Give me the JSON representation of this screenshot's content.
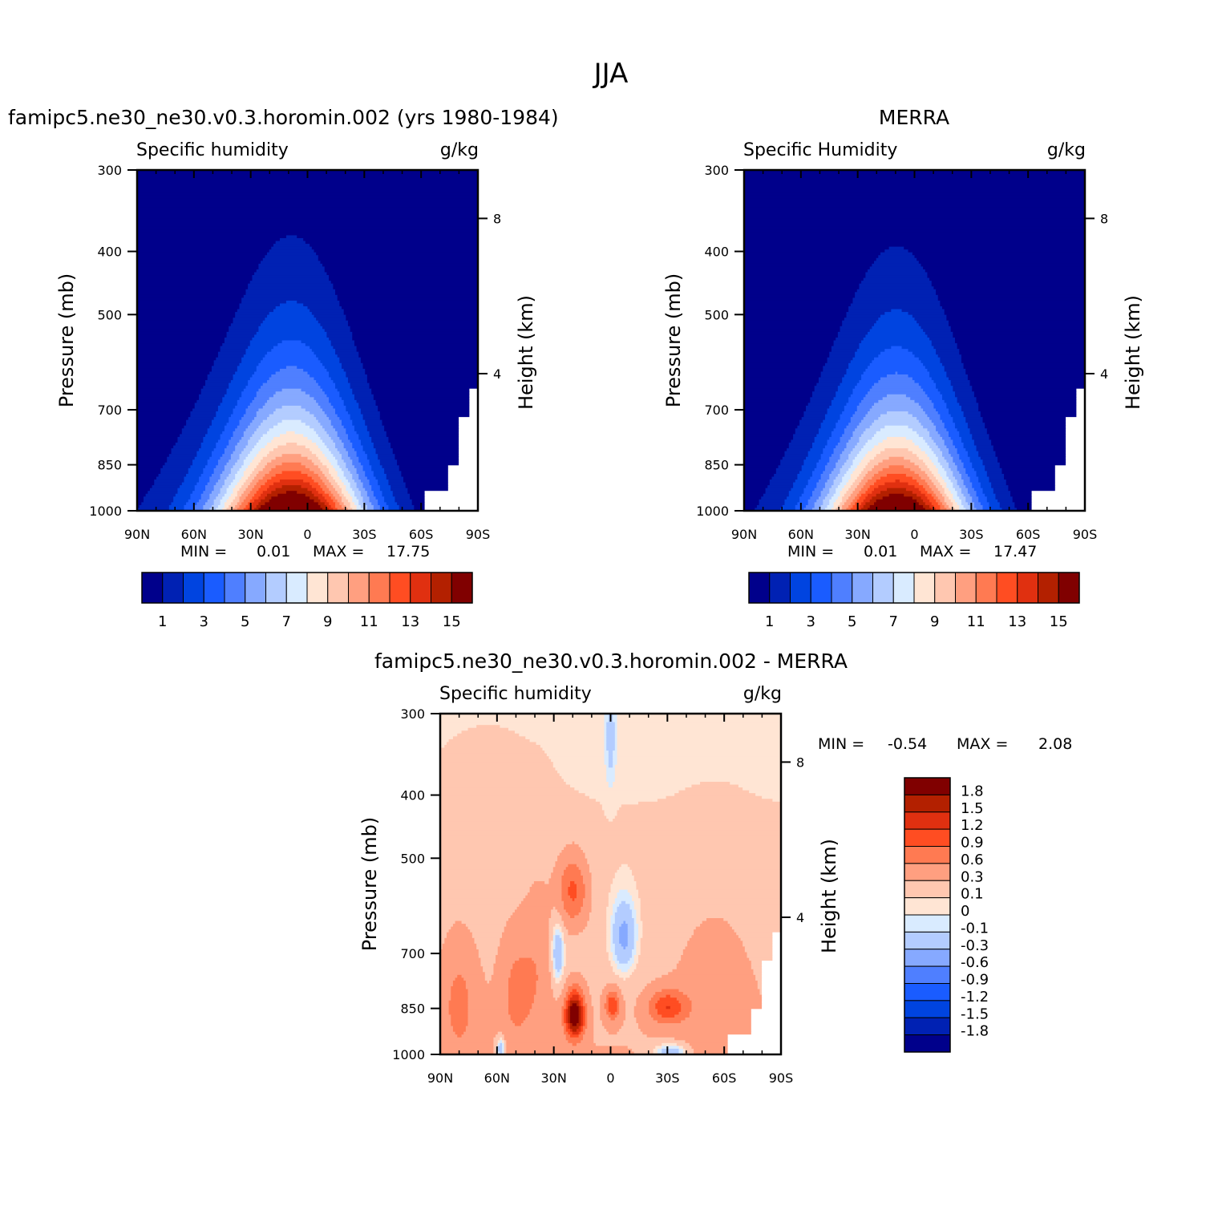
{
  "figure": {
    "title": "JJA"
  },
  "colors": {
    "abs_levels": [
      "#00008b",
      "#0021b3",
      "#0044e0",
      "#1a5cff",
      "#4f7fff",
      "#86a9ff",
      "#b3ccff",
      "#d9ebff",
      "#ffe5d4",
      "#ffc7b0",
      "#ff9f80",
      "#ff7a52",
      "#ff4d22",
      "#e03010",
      "#b32000",
      "#800000"
    ],
    "diff_levels": [
      "#00008b",
      "#0021b3",
      "#0044e0",
      "#1a5cff",
      "#4f7fff",
      "#86a9ff",
      "#b3ccff",
      "#d9ebff",
      "#ffe5d4",
      "#ffc7b0",
      "#ff9f80",
      "#ff7a52",
      "#ff4d22",
      "#e03010",
      "#b32000",
      "#800000"
    ],
    "missing": "#ffffff"
  },
  "chart_data": [
    {
      "type": "heatmap",
      "title": "famipc5.ne30_ne30.v0.3.horomin.002 (yrs 1980-1984)",
      "subtitle_left": "Specific humidity",
      "subtitle_right": "g/kg",
      "xlabel": "",
      "ylabel": "Pressure (mb)",
      "ylabel_right": "Height (km)",
      "x_ticks": [
        "90N",
        "60N",
        "30N",
        "0",
        "30S",
        "60S",
        "90S"
      ],
      "y_ticks": [
        "300",
        "400",
        "500",
        "700",
        "850",
        "1000"
      ],
      "right_ticks": [
        "8",
        "4"
      ],
      "min_label": "MIN =",
      "min_value": "0.01",
      "max_label": "MAX =",
      "max_value": "17.75",
      "colorbar_labels": [
        "1",
        "3",
        "5",
        "7",
        "9",
        "11",
        "13",
        "15"
      ],
      "field": "model",
      "xlim": [
        90,
        -90
      ],
      "ylim": [
        1000,
        300
      ]
    },
    {
      "type": "heatmap",
      "title": "MERRA",
      "subtitle_left": "Specific Humidity",
      "subtitle_right": "g/kg",
      "xlabel": "",
      "ylabel": "Pressure (mb)",
      "ylabel_right": "Height (km)",
      "x_ticks": [
        "90N",
        "60N",
        "30N",
        "0",
        "30S",
        "60S",
        "90S"
      ],
      "y_ticks": [
        "300",
        "400",
        "500",
        "700",
        "850",
        "1000"
      ],
      "right_ticks": [
        "8",
        "4"
      ],
      "min_label": "MIN =",
      "min_value": "0.01",
      "max_label": "MAX =",
      "max_value": "17.47",
      "colorbar_labels": [
        "1",
        "3",
        "5",
        "7",
        "9",
        "11",
        "13",
        "15"
      ],
      "field": "merra",
      "xlim": [
        90,
        -90
      ],
      "ylim": [
        1000,
        300
      ]
    },
    {
      "type": "heatmap",
      "title": "famipc5.ne30_ne30.v0.3.horomin.002 - MERRA",
      "subtitle_left": "Specific humidity",
      "subtitle_right": "g/kg",
      "xlabel": "",
      "ylabel": "Pressure (mb)",
      "ylabel_right": "Height (km)",
      "x_ticks": [
        "90N",
        "60N",
        "30N",
        "0",
        "30S",
        "60S",
        "90S"
      ],
      "y_ticks": [
        "300",
        "400",
        "500",
        "700",
        "850",
        "1000"
      ],
      "right_ticks": [
        "8",
        "4"
      ],
      "min_label": "MIN =",
      "min_value": "-0.54",
      "max_label": "MAX =",
      "max_value": "2.08",
      "colorbar_labels": [
        "1.8",
        "1.5",
        "1.2",
        "0.9",
        "0.6",
        "0.3",
        "0.1",
        "0",
        "-0.1",
        "-0.3",
        "-0.6",
        "-0.9",
        "-1.2",
        "-1.5",
        "-1.8"
      ],
      "field": "diff",
      "xlim": [
        90,
        -90
      ],
      "ylim": [
        1000,
        300
      ]
    }
  ]
}
